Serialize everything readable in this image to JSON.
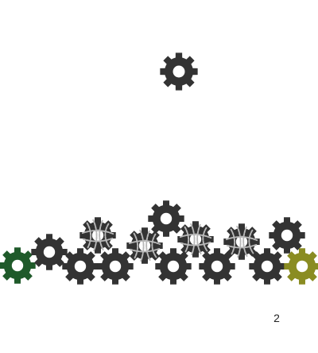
{
  "level": {
    "number": "2"
  },
  "colors": {
    "gear_dark": "#333333",
    "gear_start": "#1f5a2a",
    "gear_goal": "#8a8c22",
    "rope": "#b8b8b8"
  },
  "gears": [
    {
      "id": "loose-gear",
      "kind": "loose",
      "color": "gear_dark"
    },
    {
      "id": "start-gear",
      "kind": "start",
      "color": "gear_start"
    },
    {
      "id": "gear-1",
      "kind": "fixed",
      "color": "gear_dark"
    },
    {
      "id": "gear-2",
      "kind": "fixed",
      "color": "gear_dark"
    },
    {
      "id": "gear-3",
      "kind": "tied",
      "color": "gear_dark"
    },
    {
      "id": "gear-4",
      "kind": "fixed",
      "color": "gear_dark"
    },
    {
      "id": "gear-5",
      "kind": "tied",
      "color": "gear_dark"
    },
    {
      "id": "gear-6",
      "kind": "fixed",
      "color": "gear_dark"
    },
    {
      "id": "gear-7",
      "kind": "fixed",
      "color": "gear_dark"
    },
    {
      "id": "gear-8",
      "kind": "tied",
      "color": "gear_dark"
    },
    {
      "id": "gear-9",
      "kind": "fixed",
      "color": "gear_dark"
    },
    {
      "id": "gear-10",
      "kind": "tied",
      "color": "gear_dark"
    },
    {
      "id": "gear-11",
      "kind": "fixed",
      "color": "gear_dark"
    },
    {
      "id": "gear-12",
      "kind": "fixed",
      "color": "gear_dark"
    },
    {
      "id": "goal-gear",
      "kind": "goal",
      "color": "gear_goal"
    }
  ]
}
